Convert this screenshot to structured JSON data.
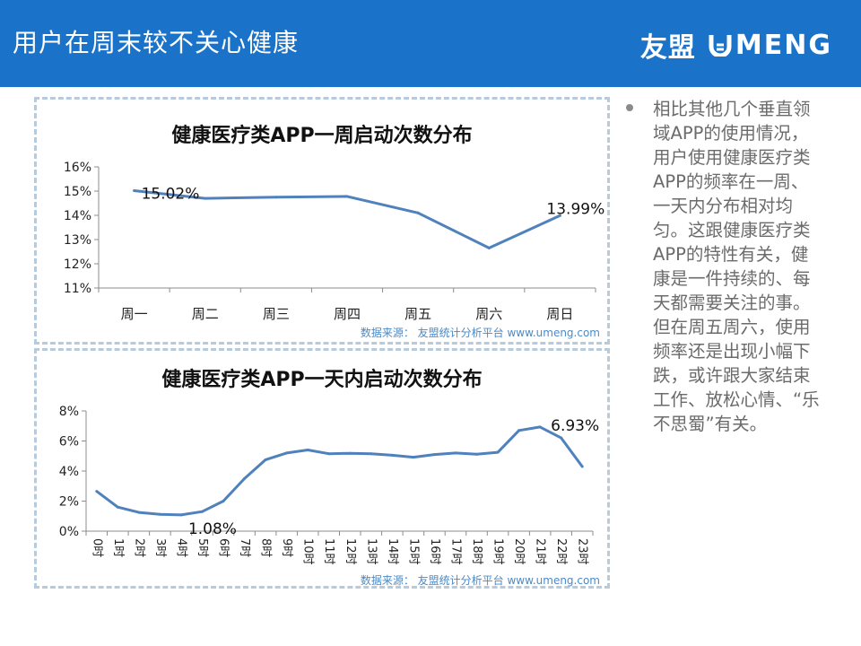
{
  "header": {
    "title": "用户在周末较不关心健康",
    "logo_cn": "友盟",
    "logo_en": "MENG",
    "brand_color": "#1a73c8"
  },
  "charts": {
    "weekly": {
      "title": "健康医疗类APP一周启动次数分布",
      "source": "数据来源： 友盟统计分析平台 www.umeng.com",
      "label_first": "15.02%",
      "label_last": "13.99%",
      "ytick_labels": [
        "11%",
        "12%",
        "13%",
        "14%",
        "15%",
        "16%"
      ]
    },
    "daily": {
      "title": "健康医疗类APP一天内启动次数分布",
      "source": "数据来源： 友盟统计分析平台 www.umeng.com",
      "label_min": "1.08%",
      "label_max": "6.93%",
      "ytick_labels": [
        "0%",
        "2%",
        "4%",
        "6%",
        "8%"
      ]
    }
  },
  "chart_data": [
    {
      "type": "line",
      "title": "健康医疗类APP一周启动次数分布",
      "categories": [
        "周一",
        "周二",
        "周三",
        "周四",
        "周五",
        "周六",
        "周日"
      ],
      "values": [
        15.02,
        14.7,
        14.75,
        14.78,
        14.1,
        12.65,
        13.99
      ],
      "ylim": [
        11,
        16
      ],
      "yticks": [
        11,
        12,
        13,
        14,
        15,
        16
      ],
      "xlabel": "",
      "ylabel": "",
      "line_color": "#4f81bd"
    },
    {
      "type": "line",
      "title": "健康医疗类APP一天内启动次数分布",
      "categories": [
        "0时",
        "1时",
        "2时",
        "3时",
        "4时",
        "5时",
        "6时",
        "7时",
        "8时",
        "9时",
        "10时",
        "11时",
        "12时",
        "13时",
        "14时",
        "15时",
        "16时",
        "17时",
        "18时",
        "19时",
        "20时",
        "21时",
        "22时",
        "23时"
      ],
      "values": [
        2.65,
        1.6,
        1.25,
        1.12,
        1.08,
        1.3,
        2.0,
        3.5,
        4.75,
        5.2,
        5.4,
        5.15,
        5.18,
        5.15,
        5.05,
        4.92,
        5.1,
        5.2,
        5.12,
        5.25,
        6.7,
        6.93,
        6.2,
        4.3
      ],
      "ylim": [
        0,
        8
      ],
      "yticks": [
        0,
        2,
        4,
        6,
        8
      ],
      "xlabel": "",
      "ylabel": "",
      "line_color": "#4f81bd"
    }
  ],
  "bullets": [
    "相比其他几个垂直领域APP的使用情况，用户使用健康医疗类APP的频率在一周、一天内分布相对均匀。这跟健康医疗类APP的特性有关，健康是一件持续的、每天都需要关注的事。但在周五周六，使用频率还是出现小幅下跌，或许跟大家结束工作、放松心情、“乐不思蜀”有关。"
  ]
}
